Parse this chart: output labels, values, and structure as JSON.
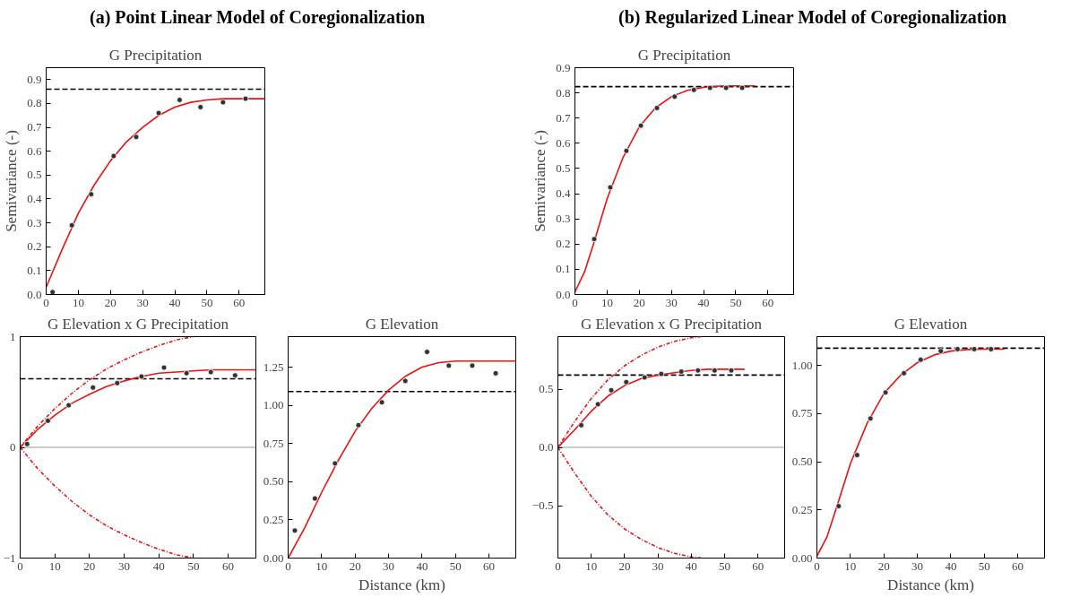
{
  "chart_data": [
    {
      "type": "scatter",
      "title": "(a) Point Linear Model of Coregionalization",
      "subtitle": "G Precipitation",
      "ylabel": "Semivariance (-)",
      "xlim": [
        0,
        68
      ],
      "ylim": [
        0,
        0.95
      ],
      "xticks": [
        0,
        10,
        20,
        30,
        40,
        50,
        60
      ],
      "yticks": [
        {
          "value": 0,
          "label": "0.0"
        },
        0.1,
        0.2,
        0.3,
        0.4,
        0.5,
        0.6,
        0.7,
        0.8,
        0.9
      ],
      "grid": false,
      "ref_lines": [
        {
          "axis": "y",
          "value": 0.86,
          "color": "#000000",
          "line_style": "dashed"
        }
      ],
      "series": [
        {
          "color": "#333333",
          "marker": "circle",
          "x": [
            2,
            8,
            14,
            21,
            28,
            35,
            41.5,
            48,
            55,
            62
          ],
          "values": [
            0.01,
            0.29,
            0.42,
            0.58,
            0.66,
            0.76,
            0.815,
            0.785,
            0.805,
            0.82
          ]
        },
        {
          "type": "line",
          "color": "#ee1111",
          "marker": "none",
          "line_style": "solid",
          "x": [
            0,
            5,
            10,
            15,
            20,
            25,
            30,
            35,
            40,
            45,
            50,
            55,
            60,
            68
          ],
          "values": [
            0.03,
            0.19,
            0.34,
            0.46,
            0.56,
            0.64,
            0.7,
            0.75,
            0.785,
            0.805,
            0.815,
            0.82,
            0.82,
            0.82
          ]
        }
      ]
    },
    {
      "type": "scatter",
      "title": "(b) Regularized Linear Model of Coregionalization",
      "subtitle": "G Precipitation",
      "ylabel": "Semivariance (-)",
      "xlim": [
        0,
        68
      ],
      "ylim": [
        0,
        0.9
      ],
      "xticks": [
        0,
        10,
        20,
        30,
        40,
        50,
        60
      ],
      "yticks": [
        {
          "value": 0,
          "label": "0.0"
        },
        0.1,
        0.2,
        0.3,
        0.4,
        0.5,
        0.6,
        0.7,
        0.8,
        0.9
      ],
      "grid": false,
      "ref_lines": [
        {
          "axis": "y",
          "value": 0.825,
          "color": "#000000",
          "line_style": "dashed"
        }
      ],
      "series": [
        {
          "color": "#333333",
          "marker": "circle",
          "x": [
            6,
            11,
            16,
            20.5,
            25.5,
            31,
            37,
            42,
            47,
            52
          ],
          "values": [
            0.22,
            0.425,
            0.57,
            0.67,
            0.74,
            0.785,
            0.812,
            0.82,
            0.82,
            0.82
          ]
        },
        {
          "type": "line",
          "color": "#ee1111",
          "marker": "none",
          "line_style": "solid",
          "x": [
            0,
            3,
            6,
            10,
            15,
            20,
            25,
            30,
            35,
            40,
            45,
            50,
            56
          ],
          "values": [
            0.01,
            0.09,
            0.21,
            0.38,
            0.545,
            0.665,
            0.74,
            0.785,
            0.81,
            0.822,
            0.827,
            0.828,
            0.828
          ]
        }
      ]
    },
    {
      "type": "scatter",
      "title": "G Elevation x G Precipitation",
      "xlim": [
        0,
        68
      ],
      "ylim": [
        -1,
        1
      ],
      "xticks": [
        0,
        10,
        20,
        30,
        40,
        50,
        60
      ],
      "yticks": [
        {
          "value": -1,
          "label": "−1"
        },
        0,
        1
      ],
      "grid": false,
      "ref_lines": [
        {
          "axis": "y",
          "value": 0.62,
          "color": "#000000",
          "line_style": "dashed"
        },
        {
          "axis": "y",
          "value": 0,
          "color": "#999999",
          "line_style": "solid"
        }
      ],
      "series": [
        {
          "color": "#333333",
          "marker": "circle",
          "x": [
            2,
            8,
            14,
            21,
            28,
            35,
            41.5,
            48,
            55,
            62
          ],
          "values": [
            0.03,
            0.24,
            0.38,
            0.54,
            0.58,
            0.64,
            0.72,
            0.67,
            0.68,
            0.65
          ]
        },
        {
          "type": "line",
          "color": "#ee1111",
          "marker": "none",
          "line_style": "solid",
          "x": [
            0,
            5,
            10,
            15,
            20,
            25,
            30,
            35,
            40,
            45,
            50,
            55,
            60,
            68
          ],
          "values": [
            0,
            0.16,
            0.29,
            0.4,
            0.48,
            0.55,
            0.6,
            0.64,
            0.67,
            0.68,
            0.69,
            0.7,
            0.7,
            0.7
          ]
        },
        {
          "type": "line",
          "color": "#ee1111",
          "marker": "none",
          "line_style": "dotted",
          "x": [
            0,
            5,
            10,
            15,
            20,
            25,
            30,
            35,
            40,
            45,
            50
          ],
          "values": [
            0,
            0.19,
            0.35,
            0.49,
            0.61,
            0.71,
            0.79,
            0.86,
            0.92,
            0.97,
            1.0
          ]
        },
        {
          "type": "line",
          "color": "#ee1111",
          "marker": "none",
          "line_style": "dotted",
          "x": [
            0,
            5,
            10,
            15,
            20,
            25,
            30,
            35,
            40,
            45,
            50
          ],
          "values": [
            0,
            -0.19,
            -0.35,
            -0.49,
            -0.61,
            -0.71,
            -0.79,
            -0.86,
            -0.92,
            -0.97,
            -1.0
          ]
        }
      ]
    },
    {
      "type": "scatter",
      "title": "G Elevation",
      "xlabel": "Distance (km)",
      "xlim": [
        0,
        68
      ],
      "ylim": [
        0,
        1.45
      ],
      "xticks": [
        0,
        10,
        20,
        30,
        40,
        50,
        60
      ],
      "yticks": [
        {
          "value": 0,
          "label": "0.00"
        },
        {
          "value": 0.25,
          "label": "0.25"
        },
        {
          "value": 0.5,
          "label": "0.50"
        },
        {
          "value": 0.75,
          "label": "0.75"
        },
        {
          "value": 1,
          "label": "1.00"
        },
        {
          "value": 1.25,
          "label": "1.25"
        }
      ],
      "grid": false,
      "ref_lines": [
        {
          "axis": "y",
          "value": 1.09,
          "color": "#000000",
          "line_style": "dashed"
        }
      ],
      "series": [
        {
          "color": "#333333",
          "marker": "circle",
          "x": [
            2,
            8,
            14,
            21,
            28,
            35,
            41.5,
            48,
            55,
            62
          ],
          "values": [
            0.18,
            0.39,
            0.62,
            0.87,
            1.02,
            1.16,
            1.35,
            1.26,
            1.26,
            1.21
          ]
        },
        {
          "type": "line",
          "color": "#ee1111",
          "marker": "none",
          "line_style": "solid",
          "x": [
            0,
            5,
            10,
            15,
            20,
            25,
            30,
            35,
            40,
            45,
            50,
            55,
            60,
            68
          ],
          "values": [
            0,
            0.2,
            0.43,
            0.64,
            0.83,
            0.98,
            1.1,
            1.19,
            1.25,
            1.28,
            1.29,
            1.29,
            1.29,
            1.29
          ]
        }
      ]
    },
    {
      "type": "scatter",
      "title": "G Elevation x G Precipitation",
      "xlim": [
        0,
        68
      ],
      "ylim": [
        -0.95,
        0.95
      ],
      "xticks": [
        0,
        10,
        20,
        30,
        40,
        50,
        60
      ],
      "yticks": [
        {
          "value": -0.5,
          "label": "−0.5"
        },
        {
          "value": 0,
          "label": "0.0"
        },
        0.5
      ],
      "grid": false,
      "ref_lines": [
        {
          "axis": "y",
          "value": 0.62,
          "color": "#000000",
          "line_style": "dashed"
        },
        {
          "axis": "y",
          "value": 0,
          "color": "#999999",
          "line_style": "solid"
        }
      ],
      "series": [
        {
          "color": "#333333",
          "marker": "circle",
          "x": [
            7,
            12,
            16,
            20.5,
            26,
            31,
            37,
            42,
            47,
            52
          ],
          "values": [
            0.19,
            0.37,
            0.49,
            0.56,
            0.6,
            0.63,
            0.65,
            0.66,
            0.66,
            0.66
          ]
        },
        {
          "type": "line",
          "color": "#ee1111",
          "marker": "none",
          "line_style": "solid",
          "x": [
            0,
            5,
            10,
            15,
            20,
            25,
            30,
            35,
            40,
            45,
            50,
            56
          ],
          "values": [
            0,
            0.15,
            0.31,
            0.44,
            0.53,
            0.59,
            0.62,
            0.64,
            0.66,
            0.67,
            0.67,
            0.67
          ]
        },
        {
          "type": "line",
          "color": "#ee1111",
          "marker": "none",
          "line_style": "dotted",
          "x": [
            0,
            5,
            10,
            15,
            20,
            25,
            30,
            35,
            40,
            43
          ],
          "values": [
            0,
            0.22,
            0.42,
            0.58,
            0.7,
            0.79,
            0.86,
            0.91,
            0.94,
            0.95
          ]
        },
        {
          "type": "line",
          "color": "#ee1111",
          "marker": "none",
          "line_style": "dotted",
          "x": [
            0,
            5,
            10,
            15,
            20,
            25,
            30,
            35,
            40,
            43
          ],
          "values": [
            0,
            -0.22,
            -0.42,
            -0.58,
            -0.7,
            -0.79,
            -0.86,
            -0.91,
            -0.94,
            -0.95
          ]
        }
      ]
    },
    {
      "type": "scatter",
      "title": "G Elevation",
      "xlabel": "Distance (km)",
      "xlim": [
        0,
        68
      ],
      "ylim": [
        0,
        1.15
      ],
      "xticks": [
        0,
        10,
        20,
        30,
        40,
        50,
        60
      ],
      "yticks": [
        {
          "value": 0,
          "label": "0.00"
        },
        {
          "value": 0.25,
          "label": "0.25"
        },
        {
          "value": 0.5,
          "label": "0.50"
        },
        {
          "value": 0.75,
          "label": "0.75"
        },
        {
          "value": 1,
          "label": "1.00"
        }
      ],
      "grid": false,
      "ref_lines": [
        {
          "axis": "y",
          "value": 1.09,
          "color": "#000000",
          "line_style": "dashed"
        }
      ],
      "series": [
        {
          "color": "#333333",
          "marker": "circle",
          "x": [
            6.5,
            12,
            16,
            20.5,
            26,
            31,
            37,
            42,
            47,
            52
          ],
          "values": [
            0.27,
            0.535,
            0.725,
            0.86,
            0.96,
            1.03,
            1.075,
            1.085,
            1.085,
            1.085
          ]
        },
        {
          "type": "line",
          "color": "#ee1111",
          "marker": "none",
          "line_style": "solid",
          "x": [
            0,
            3,
            6,
            10,
            15,
            20,
            25,
            30,
            35,
            40,
            45,
            50,
            56
          ],
          "values": [
            0.01,
            0.11,
            0.27,
            0.49,
            0.7,
            0.855,
            0.95,
            1.015,
            1.055,
            1.075,
            1.083,
            1.085,
            1.085
          ]
        }
      ]
    }
  ]
}
